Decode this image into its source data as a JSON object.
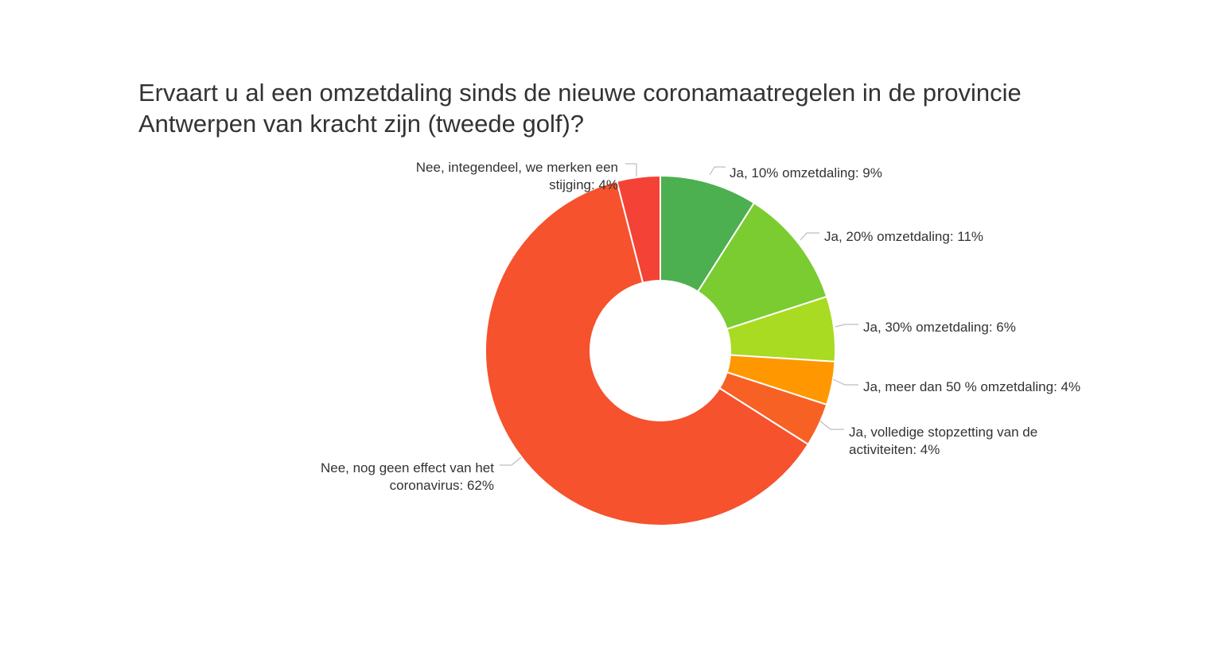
{
  "chart_data": {
    "type": "pie",
    "donut": true,
    "title_lines": [
      "Ervaart u al een omzetdaling sinds de nieuwe coronamaatregelen in de provincie",
      "Antwerpen van kracht zijn (tweede golf)?"
    ],
    "legend": "none",
    "slices": [
      {
        "label_lines": [
          "Ja, 10% omzetdaling: 9%"
        ],
        "value": 9,
        "color": "#4caf50"
      },
      {
        "label_lines": [
          "Ja, 20% omzetdaling: 11%"
        ],
        "value": 11,
        "color": "#7acc31"
      },
      {
        "label_lines": [
          "Ja, 30% omzetdaling: 6%"
        ],
        "value": 6,
        "color": "#a8db22"
      },
      {
        "label_lines": [
          "Ja, meer dan 50 % omzetdaling: 4%"
        ],
        "value": 4,
        "color": "#ff9800"
      },
      {
        "label_lines": [
          "Ja, volledige stopzetting van de",
          "activiteiten: 4%"
        ],
        "value": 4,
        "color": "#f76224"
      },
      {
        "label_lines": [
          "Nee, nog geen effect van het",
          "coronavirus: 62%"
        ],
        "value": 62,
        "color": "#f5522d"
      },
      {
        "label_lines": [
          "Nee, integendeel, we merken een",
          "stijging: 4%"
        ],
        "value": 4,
        "color": "#f44336"
      }
    ]
  }
}
